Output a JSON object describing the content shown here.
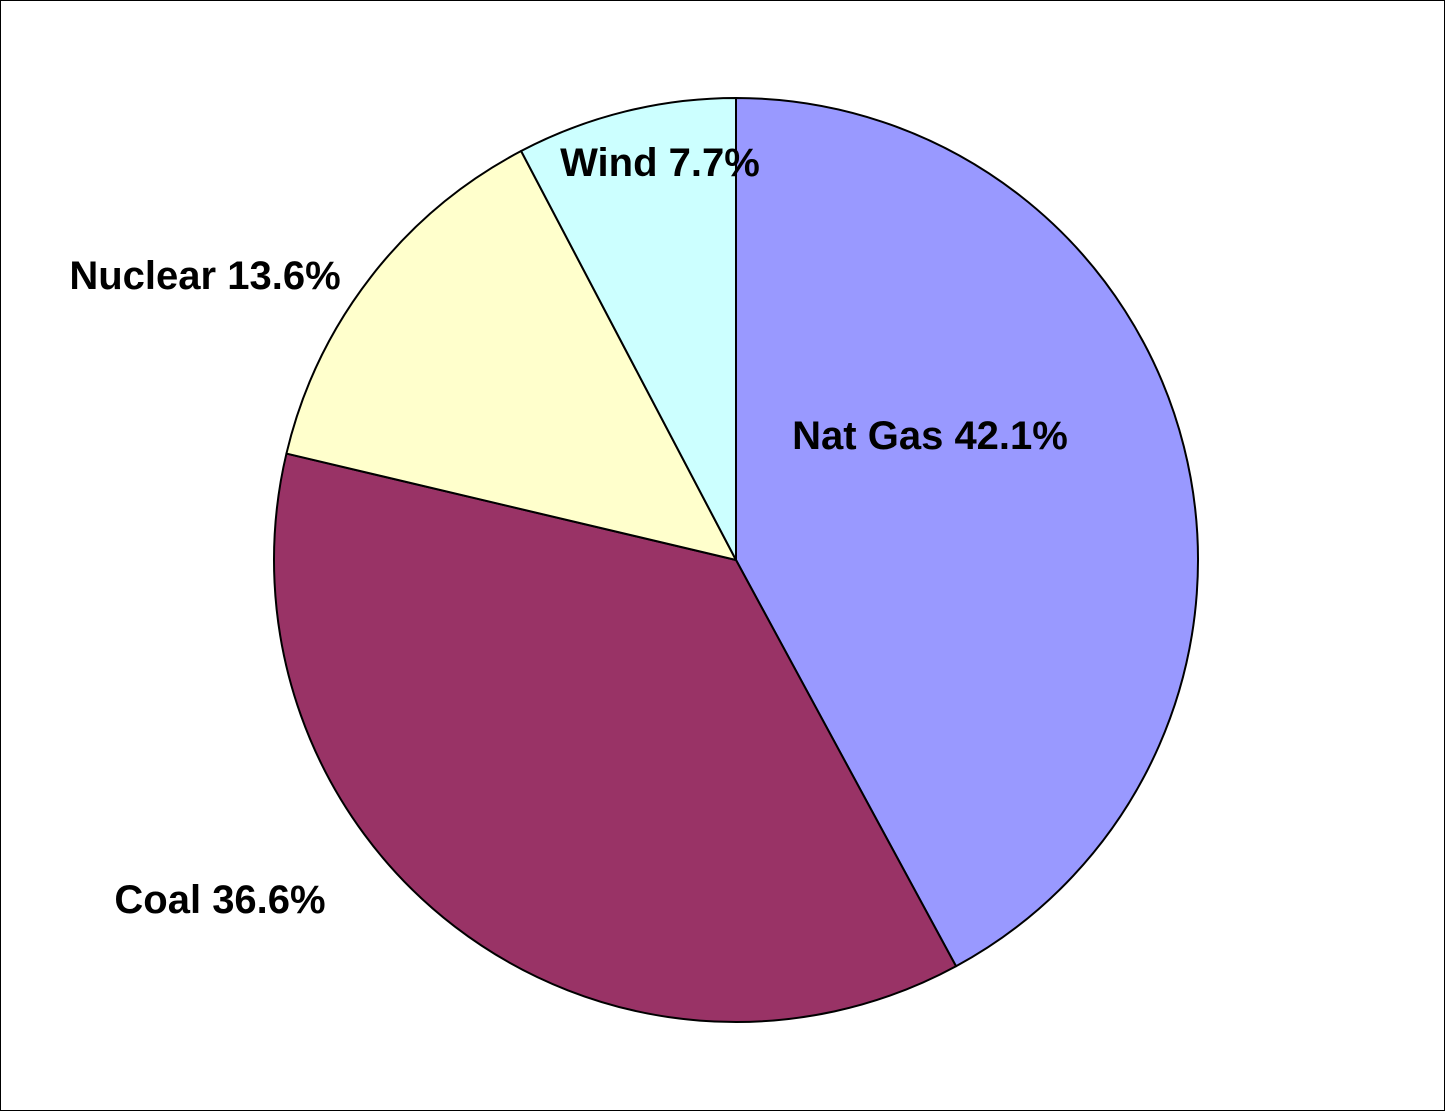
{
  "chart_data": {
    "type": "pie",
    "categories": [
      "Nat Gas",
      "Coal",
      "Nuclear",
      "Wind"
    ],
    "values": [
      42.1,
      36.6,
      13.6,
      7.7
    ],
    "value_labels": [
      "42.1%",
      "36.6%",
      "13.6%",
      "7.7%"
    ],
    "colors": [
      "#9999ff",
      "#993366",
      "#ffffcc",
      "#ccffff"
    ]
  }
}
